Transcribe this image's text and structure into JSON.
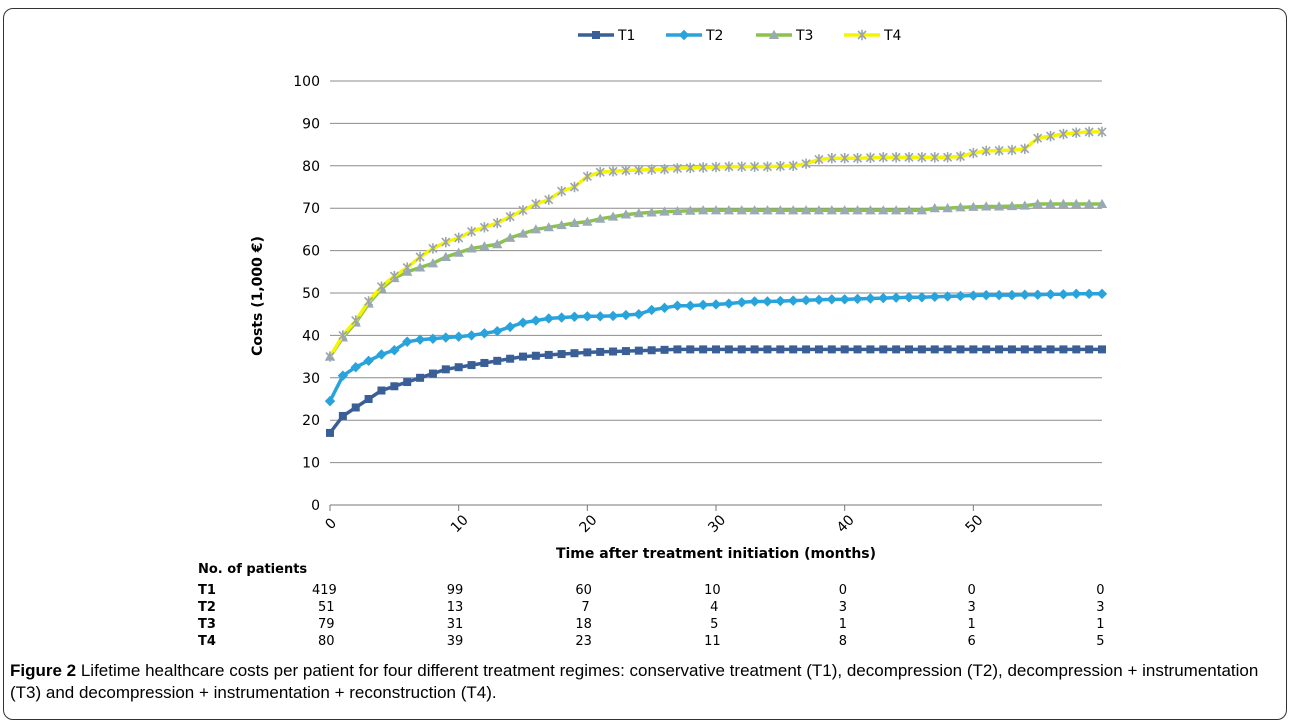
{
  "chart_data": {
    "type": "line",
    "legend_position": "top",
    "grid": true,
    "xlabel": "Time after treatment initiation (months)",
    "ylabel": "Costs (1,000 €)",
    "xlim": [
      0,
      60
    ],
    "ylim": [
      0,
      100
    ],
    "xticks": [
      0,
      10,
      20,
      30,
      40,
      50
    ],
    "yticks": [
      0,
      10,
      20,
      30,
      40,
      50,
      60,
      70,
      80,
      90,
      100
    ],
    "x": [
      0,
      1,
      2,
      3,
      4,
      5,
      6,
      7,
      8,
      9,
      10,
      11,
      12,
      13,
      14,
      15,
      16,
      17,
      18,
      19,
      20,
      21,
      22,
      23,
      24,
      25,
      26,
      27,
      28,
      29,
      30,
      31,
      32,
      33,
      34,
      35,
      36,
      37,
      38,
      39,
      40,
      41,
      42,
      43,
      44,
      45,
      46,
      47,
      48,
      49,
      50,
      51,
      52,
      53,
      54,
      55,
      56,
      57,
      58,
      59,
      60
    ],
    "series": [
      {
        "name": "T1",
        "color": "#3a5f97",
        "marker": "square",
        "values": [
          17,
          21,
          23,
          25,
          27,
          28,
          29,
          30,
          31,
          32,
          32.5,
          33,
          33.5,
          34,
          34.5,
          35,
          35.2,
          35.4,
          35.6,
          35.8,
          36,
          36.1,
          36.2,
          36.3,
          36.4,
          36.5,
          36.6,
          36.7,
          36.7,
          36.7,
          36.7,
          36.7,
          36.7,
          36.7,
          36.7,
          36.7,
          36.7,
          36.7,
          36.7,
          36.7,
          36.7,
          36.7,
          36.7,
          36.7,
          36.7,
          36.7,
          36.7,
          36.7,
          36.7,
          36.7,
          36.7,
          36.7,
          36.7,
          36.7,
          36.7,
          36.7,
          36.7,
          36.7,
          36.7,
          36.7,
          36.7
        ]
      },
      {
        "name": "T2",
        "color": "#29a3dc",
        "marker": "diamond",
        "values": [
          24.5,
          30.5,
          32.5,
          34,
          35.5,
          36.5,
          38.5,
          39,
          39.2,
          39.5,
          39.7,
          40,
          40.5,
          41,
          42,
          43,
          43.5,
          44,
          44.2,
          44.4,
          44.5,
          44.5,
          44.6,
          44.8,
          45,
          46,
          46.5,
          47,
          47,
          47.2,
          47.3,
          47.5,
          47.8,
          48,
          48,
          48.1,
          48.2,
          48.3,
          48.4,
          48.5,
          48.5,
          48.6,
          48.7,
          48.8,
          48.9,
          49,
          49,
          49.1,
          49.2,
          49.3,
          49.4,
          49.5,
          49.5,
          49.5,
          49.6,
          49.6,
          49.7,
          49.7,
          49.8,
          49.8,
          49.8
        ]
      },
      {
        "name": "T3",
        "color": "#8bc34a",
        "marker": "triangle",
        "values": [
          35,
          39.5,
          43,
          47.5,
          51,
          53.5,
          55,
          56,
          57,
          58.5,
          59.5,
          60.5,
          61,
          61.5,
          63,
          64,
          65,
          65.5,
          66,
          66.5,
          66.8,
          67.5,
          68,
          68.5,
          68.8,
          69,
          69.2,
          69.3,
          69.4,
          69.5,
          69.5,
          69.5,
          69.5,
          69.5,
          69.5,
          69.5,
          69.5,
          69.5,
          69.5,
          69.5,
          69.5,
          69.5,
          69.5,
          69.5,
          69.5,
          69.5,
          69.5,
          70,
          70,
          70.2,
          70.3,
          70.4,
          70.4,
          70.5,
          70.6,
          71,
          71,
          71,
          71,
          71,
          71
        ]
      },
      {
        "name": "T4",
        "color": "#f5f500",
        "marker": "x",
        "values": [
          35,
          40,
          43.5,
          48,
          51.5,
          54,
          56,
          58.5,
          60.5,
          62,
          63,
          64.5,
          65.5,
          66.5,
          68,
          69.5,
          71,
          72,
          74,
          75,
          77.5,
          78.5,
          78.7,
          78.9,
          79,
          79.1,
          79.2,
          79.4,
          79.5,
          79.6,
          79.7,
          79.8,
          79.8,
          79.8,
          79.8,
          79.9,
          80,
          80.5,
          81.5,
          81.8,
          81.8,
          81.8,
          81.9,
          82,
          82,
          82,
          82,
          82,
          82,
          82.2,
          83,
          83.5,
          83.6,
          83.7,
          84,
          86.5,
          87,
          87.5,
          87.8,
          88,
          88
        ]
      }
    ]
  },
  "patients": {
    "title": "No. of patients",
    "rows": [
      {
        "label": "T1",
        "counts": [
          "419",
          "99",
          "60",
          "10",
          "0",
          "0",
          "0"
        ]
      },
      {
        "label": "T2",
        "counts": [
          "51",
          "13",
          "7",
          "4",
          "3",
          "3",
          "3"
        ]
      },
      {
        "label": "T3",
        "counts": [
          "79",
          "31",
          "18",
          "5",
          "1",
          "1",
          "1"
        ]
      },
      {
        "label": "T4",
        "counts": [
          "80",
          "39",
          "23",
          "11",
          "8",
          "6",
          "5"
        ]
      }
    ]
  },
  "caption": {
    "label": "Figure 2",
    "text": " Lifetime healthcare costs per patient for four different treatment regimes: conservative treatment (T1), decompression (T2), decompression + instrumentation (T3) and decompression + instrumentation + reconstruction (T4)."
  }
}
